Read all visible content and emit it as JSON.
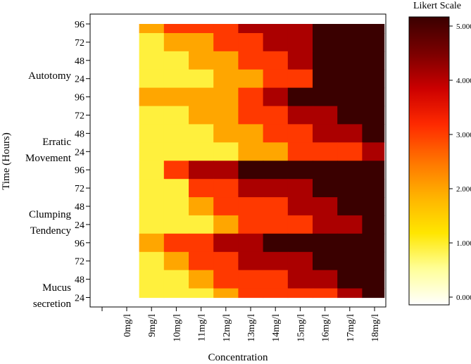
{
  "chart_data": {
    "type": "heatmap",
    "title": "",
    "xlabel": "Concentration",
    "ylabel": "Time (Hours)",
    "x_categories": [
      "0mg/l",
      "9mg/l",
      "10mg/l",
      "11mg/l",
      "12mg/l",
      "13mg/l",
      "14mg/l",
      "15mg/l",
      "16mg/l",
      "17mg/l",
      "18mg/l"
    ],
    "row_groups": [
      {
        "name": "Autotomy",
        "hours": [
          "96",
          "72",
          "48",
          "24"
        ]
      },
      {
        "name": "Erratic Movement",
        "hours": [
          "96",
          "72",
          "48",
          "24"
        ]
      },
      {
        "name": "Clumping Tendency",
        "hours": [
          "96",
          "72",
          "48",
          "24"
        ]
      },
      {
        "name": "Mucus secretion",
        "hours": [
          "96",
          "72",
          "48",
          "24"
        ]
      }
    ],
    "values": [
      [
        0,
        2,
        3,
        3,
        3,
        4,
        4,
        4,
        5,
        5,
        5
      ],
      [
        0,
        1,
        2,
        2,
        3,
        3,
        4,
        4,
        5,
        5,
        5
      ],
      [
        0,
        1,
        1,
        2,
        2,
        3,
        3,
        4,
        5,
        5,
        5
      ],
      [
        0,
        1,
        1,
        1,
        2,
        2,
        3,
        3,
        5,
        5,
        5
      ],
      [
        0,
        2,
        2,
        2,
        2,
        3,
        4,
        5,
        5,
        5,
        5
      ],
      [
        0,
        1,
        1,
        2,
        2,
        3,
        3,
        4,
        4,
        5,
        5
      ],
      [
        0,
        1,
        1,
        1,
        2,
        2,
        3,
        3,
        4,
        4,
        5
      ],
      [
        0,
        1,
        1,
        1,
        1,
        2,
        2,
        3,
        3,
        3,
        4
      ],
      [
        0,
        1,
        3,
        4,
        4,
        5,
        5,
        5,
        5,
        5,
        5
      ],
      [
        0,
        1,
        1,
        3,
        3,
        4,
        4,
        4,
        5,
        5,
        5
      ],
      [
        0,
        1,
        1,
        2,
        3,
        3,
        3,
        4,
        4,
        5,
        5
      ],
      [
        0,
        1,
        1,
        1,
        2,
        3,
        3,
        3,
        4,
        4,
        5
      ],
      [
        0,
        2,
        3,
        3,
        4,
        4,
        5,
        5,
        5,
        5,
        5
      ],
      [
        0,
        1,
        2,
        3,
        3,
        4,
        4,
        4,
        5,
        5,
        5
      ],
      [
        0,
        1,
        1,
        2,
        3,
        3,
        3,
        4,
        4,
        5,
        5
      ],
      [
        0,
        1,
        1,
        1,
        2,
        3,
        3,
        3,
        3,
        4,
        5
      ]
    ],
    "legend": {
      "title": "Likert Scale",
      "min": 0,
      "max": 5,
      "ticks": [
        "0.000",
        "1.000",
        "2.000",
        "3.000",
        "4.000",
        "5.000"
      ]
    },
    "colormap": [
      "#ffffff",
      "#ffff99",
      "#ffe600",
      "#ffb300",
      "#ff7300",
      "#ff2a00",
      "#cc0000",
      "#7a0000",
      "#3a0000"
    ]
  }
}
